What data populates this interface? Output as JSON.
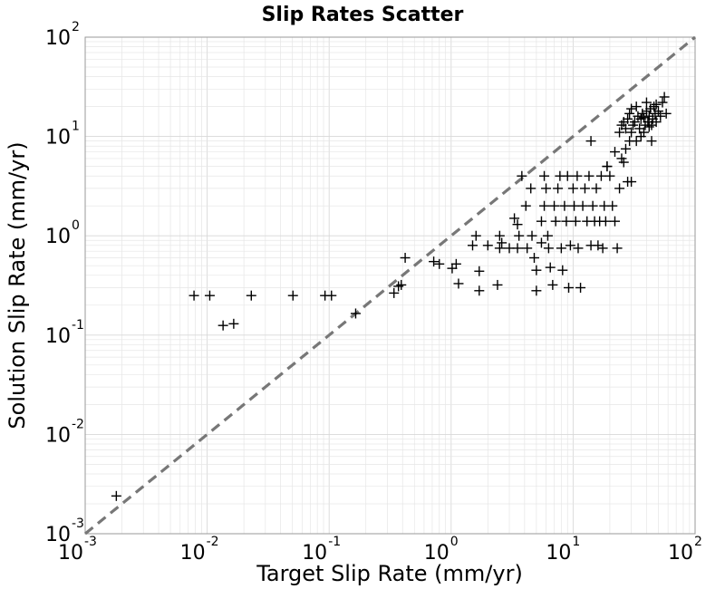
{
  "chart_data": {
    "type": "scatter",
    "title": "Slip Rates Scatter",
    "xlabel": "Target Slip Rate (mm/yr)",
    "ylabel": "Solution Slip Rate (mm/yr)",
    "x_scale": "log",
    "y_scale": "log",
    "xlim": [
      0.001,
      100
    ],
    "ylim": [
      0.001,
      100
    ],
    "grid": true,
    "x_ticks": [
      {
        "base": "10",
        "exp": "-3",
        "value": 0.001
      },
      {
        "base": "10",
        "exp": "-2",
        "value": 0.01
      },
      {
        "base": "10",
        "exp": "-1",
        "value": 0.1
      },
      {
        "base": "10",
        "exp": "0",
        "value": 1
      },
      {
        "base": "10",
        "exp": "1",
        "value": 10
      },
      {
        "base": "10",
        "exp": "2",
        "value": 100
      }
    ],
    "y_ticks": [
      {
        "base": "10",
        "exp": "-3",
        "value": 0.001
      },
      {
        "base": "10",
        "exp": "-2",
        "value": 0.01
      },
      {
        "base": "10",
        "exp": "-1",
        "value": 0.1
      },
      {
        "base": "10",
        "exp": "0",
        "value": 1
      },
      {
        "base": "10",
        "exp": "1",
        "value": 10
      },
      {
        "base": "10",
        "exp": "2",
        "value": 100
      }
    ],
    "reference_line": {
      "style": "dashed",
      "color": "#777777",
      "x": [
        0.001,
        100
      ],
      "y": [
        0.001,
        100
      ]
    },
    "marker": {
      "shape": "plus",
      "color": "#000000"
    },
    "points": [
      [
        0.0018,
        0.0024
      ],
      [
        0.0078,
        0.25
      ],
      [
        0.0105,
        0.25
      ],
      [
        0.0135,
        0.125
      ],
      [
        0.0165,
        0.13
      ],
      [
        0.023,
        0.25
      ],
      [
        0.0505,
        0.25
      ],
      [
        0.0925,
        0.25
      ],
      [
        0.1045,
        0.25
      ],
      [
        0.165,
        0.165
      ],
      [
        0.34,
        0.265
      ],
      [
        0.37,
        0.31
      ],
      [
        0.39,
        0.32
      ],
      [
        0.42,
        0.6
      ],
      [
        0.72,
        0.55
      ],
      [
        0.8,
        0.52
      ],
      [
        1.02,
        0.47
      ],
      [
        1.1,
        0.52
      ],
      [
        1.15,
        0.33
      ],
      [
        1.6,
        1.0
      ],
      [
        1.5,
        0.8
      ],
      [
        1.7,
        0.44
      ],
      [
        1.7,
        0.28
      ],
      [
        2.0,
        0.8
      ],
      [
        2.4,
        0.32
      ],
      [
        2.5,
        1.0
      ],
      [
        2.5,
        0.75
      ],
      [
        2.6,
        0.85
      ],
      [
        3.0,
        0.75
      ],
      [
        3.3,
        1.5
      ],
      [
        3.5,
        1.3
      ],
      [
        3.5,
        0.75
      ],
      [
        3.8,
        4.0
      ],
      [
        3.6,
        1.0
      ],
      [
        4.1,
        2.0
      ],
      [
        4.5,
        3.0
      ],
      [
        4.6,
        1.0
      ],
      [
        4.2,
        0.75
      ],
      [
        4.8,
        0.6
      ],
      [
        5.0,
        0.45
      ],
      [
        5.0,
        0.28
      ],
      [
        5.5,
        1.4
      ],
      [
        5.5,
        0.85
      ],
      [
        5.8,
        2.0
      ],
      [
        5.8,
        4.0
      ],
      [
        6.0,
        3.0
      ],
      [
        6.2,
        1.0
      ],
      [
        6.3,
        0.75
      ],
      [
        6.5,
        0.48
      ],
      [
        6.8,
        0.32
      ],
      [
        7.0,
        2.0
      ],
      [
        7.2,
        1.4
      ],
      [
        7.5,
        3.0
      ],
      [
        7.8,
        4.0
      ],
      [
        8.0,
        0.75
      ],
      [
        8.2,
        0.45
      ],
      [
        8.5,
        2.0
      ],
      [
        8.8,
        1.4
      ],
      [
        9.0,
        4.0
      ],
      [
        9.2,
        0.3
      ],
      [
        9.5,
        0.8
      ],
      [
        10.0,
        3.0
      ],
      [
        10.2,
        2.0
      ],
      [
        10.5,
        1.4
      ],
      [
        10.8,
        4.0
      ],
      [
        11.0,
        0.75
      ],
      [
        11.5,
        0.3
      ],
      [
        12.0,
        2.0
      ],
      [
        12.5,
        3.0
      ],
      [
        13.0,
        1.4
      ],
      [
        13.5,
        4.0
      ],
      [
        14.0,
        0.8
      ],
      [
        14.5,
        2.0
      ],
      [
        15.0,
        1.4
      ],
      [
        15.5,
        3.0
      ],
      [
        16.0,
        0.8
      ],
      [
        16.5,
        1.4
      ],
      [
        17.0,
        4.0
      ],
      [
        17.5,
        0.75
      ],
      [
        18.0,
        2.0
      ],
      [
        18.5,
        1.4
      ],
      [
        19.0,
        5.0
      ],
      [
        20.0,
        4.0
      ],
      [
        21.0,
        2.0
      ],
      [
        22.0,
        1.4
      ],
      [
        23.0,
        0.75
      ],
      [
        24.0,
        3.0
      ],
      [
        25.0,
        6.0
      ],
      [
        26.0,
        5.5
      ],
      [
        27.0,
        7.5
      ],
      [
        28.0,
        3.5
      ],
      [
        29.0,
        9.0
      ],
      [
        30.0,
        3.5
      ],
      [
        14.0,
        9.0
      ],
      [
        19.0,
        5.0
      ],
      [
        22.0,
        7.0
      ],
      [
        24.0,
        11.0
      ],
      [
        25.0,
        13.0
      ],
      [
        26.0,
        14.0
      ],
      [
        27.0,
        12.0
      ],
      [
        28.0,
        15.0
      ],
      [
        29.0,
        17.0
      ],
      [
        30.0,
        19.0
      ],
      [
        31.0,
        13.0
      ],
      [
        32.0,
        14.0
      ],
      [
        33.0,
        9.0
      ],
      [
        34.0,
        16.0
      ],
      [
        35.0,
        12.0
      ],
      [
        36.0,
        15.0
      ],
      [
        37.0,
        17.0
      ],
      [
        38.0,
        11.0
      ],
      [
        39.0,
        13.0
      ],
      [
        40.0,
        18.0
      ],
      [
        41.0,
        14.0
      ],
      [
        42.0,
        16.0
      ],
      [
        43.0,
        19.0
      ],
      [
        44.0,
        13.0
      ],
      [
        45.0,
        15.0
      ],
      [
        46.0,
        20.0
      ],
      [
        47.0,
        17.0
      ],
      [
        48.0,
        14.0
      ],
      [
        50.0,
        18.0
      ],
      [
        52.0,
        16.0
      ],
      [
        54.0,
        22.0
      ],
      [
        56.0,
        25.0
      ],
      [
        58.0,
        17.0
      ],
      [
        33.0,
        20.0
      ],
      [
        36.0,
        10.0
      ],
      [
        40.0,
        22.0
      ],
      [
        44.0,
        9.0
      ],
      [
        30.0,
        11.0
      ],
      [
        38.0,
        15.5
      ],
      [
        42.0,
        12.5
      ],
      [
        48.0,
        21.0
      ]
    ]
  }
}
